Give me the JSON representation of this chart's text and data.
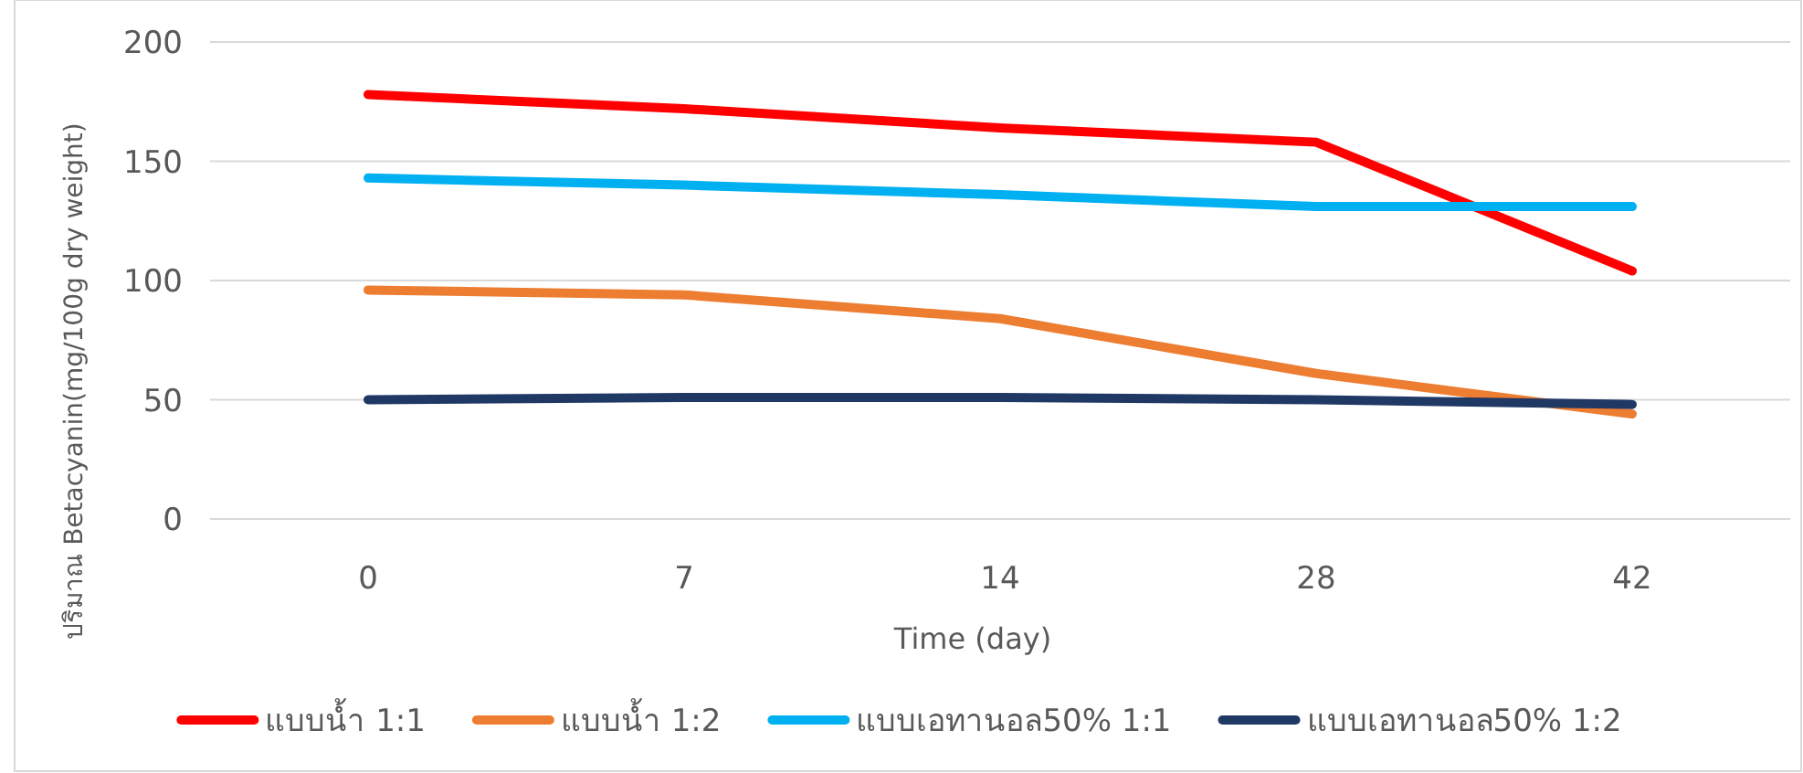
{
  "chart_data": {
    "type": "line",
    "xlabel": "Time (day)",
    "ylabel": "ปริมาณ Betacyanin(mg/100g dry weight)",
    "categories": [
      "0",
      "7",
      "14",
      "28",
      "42"
    ],
    "ylim": [
      0,
      200
    ],
    "yticks": [
      0,
      50,
      100,
      150,
      200
    ],
    "grid": "y",
    "legend": "bottom",
    "marker": "none",
    "line_style": "solid",
    "series": [
      {
        "name": "แบบน้ำ 1:1",
        "color": "#ff0000",
        "values": [
          178,
          172,
          164,
          158,
          104
        ]
      },
      {
        "name": "แบบน้ำ 1:2",
        "color": "#ed7d31",
        "values": [
          96,
          94,
          84,
          61,
          44
        ]
      },
      {
        "name": "แบบเอทานอล50% 1:1",
        "color": "#00b0f0",
        "values": [
          143,
          140,
          136,
          131,
          131
        ]
      },
      {
        "name": "แบบเอทานอล50% 1:2",
        "color": "#203864",
        "values": [
          50,
          51,
          51,
          50,
          48
        ]
      }
    ]
  }
}
